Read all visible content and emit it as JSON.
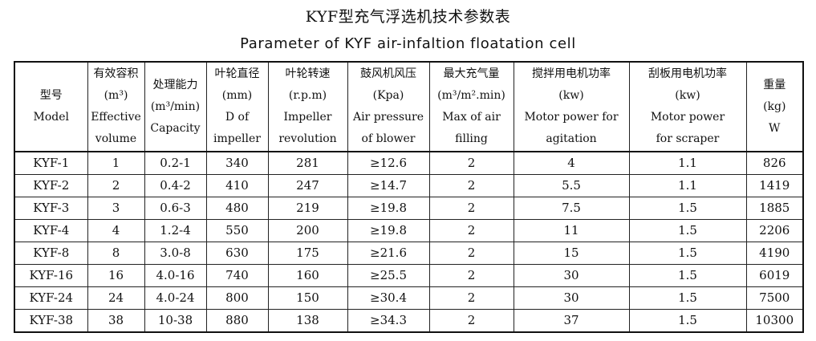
{
  "title": {
    "cn": "KYF型充气浮选机技术参数表",
    "en": "Parameter of KYF air-infaltion floatation cell"
  },
  "columns": [
    {
      "cn": "型号",
      "en": [
        "Model"
      ]
    },
    {
      "cn": "有效容积",
      "en": [
        "(m³)",
        "Effective",
        "volume"
      ]
    },
    {
      "cn": "处理能力",
      "en": [
        "(m³/min)",
        "Capacity"
      ]
    },
    {
      "cn": "叶轮直径",
      "en": [
        "(mm)",
        "D of",
        "impeller"
      ]
    },
    {
      "cn": "叶轮转速",
      "en": [
        "(r.p.m)",
        "Impeller",
        "revolution"
      ]
    },
    {
      "cn": "鼓风机风压",
      "en": [
        "(Kpa)",
        "Air pressure",
        "of blower"
      ]
    },
    {
      "cn": "最大充气量",
      "en": [
        "(m³/m².min)",
        "Max of air",
        "filling"
      ]
    },
    {
      "cn": "搅拌用电机功率",
      "en": [
        "(kw)",
        "Motor power for",
        "agitation"
      ]
    },
    {
      "cn": "刮板用电机功率",
      "en": [
        "(kw)",
        "Motor power",
        "for scraper"
      ]
    },
    {
      "cn": "重量",
      "en": [
        "(kg)",
        "W"
      ]
    }
  ],
  "rows": [
    [
      "KYF-1",
      "1",
      "0.2-1",
      "340",
      "281",
      "≥12.6",
      "2",
      "4",
      "1.1",
      "826"
    ],
    [
      "KYF-2",
      "2",
      "0.4-2",
      "410",
      "247",
      "≥14.7",
      "2",
      "5.5",
      "1.1",
      "1419"
    ],
    [
      "KYF-3",
      "3",
      "0.6-3",
      "480",
      "219",
      "≥19.8",
      "2",
      "7.5",
      "1.5",
      "1885"
    ],
    [
      "KYF-4",
      "4",
      "1.2-4",
      "550",
      "200",
      "≥19.8",
      "2",
      "11",
      "1.5",
      "2206"
    ],
    [
      "KYF-8",
      "8",
      "3.0-8",
      "630",
      "175",
      "≥21.6",
      "2",
      "15",
      "1.5",
      "4190"
    ],
    [
      "KYF-16",
      "16",
      "4.0-16",
      "740",
      "160",
      "≥25.5",
      "2",
      "30",
      "1.5",
      "6019"
    ],
    [
      "KYF-24",
      "24",
      "4.0-24",
      "800",
      "150",
      "≥30.4",
      "2",
      "30",
      "1.5",
      "7500"
    ],
    [
      "KYF-38",
      "38",
      "10-38",
      "880",
      "138",
      "≥34.3",
      "2",
      "37",
      "1.5",
      "10300"
    ]
  ]
}
